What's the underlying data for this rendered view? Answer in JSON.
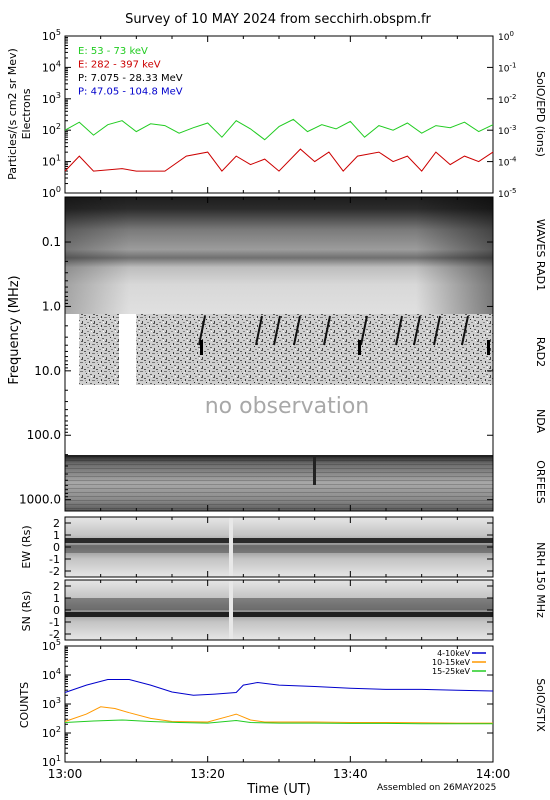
{
  "title": "Survey of 10 MAY 2024 from secchirh.obspm.fr",
  "footer": "Assembled on 26MAY2025",
  "chart_data": [
    {
      "type": "line",
      "panel": "SolO/EPD",
      "left_ylabel": [
        "Particles/(s cm2 sr Mev)",
        "Electrons"
      ],
      "right_ylabel": "SolO/EPD (ions)",
      "yscale": "log",
      "left_ylim": [
        1,
        100000
      ],
      "left_ticks": [
        {
          "base": "10",
          "exp": "0"
        },
        {
          "base": "10",
          "exp": "1"
        },
        {
          "base": "10",
          "exp": "2"
        },
        {
          "base": "10",
          "exp": "3"
        },
        {
          "base": "10",
          "exp": "4"
        },
        {
          "base": "10",
          "exp": "5"
        }
      ],
      "right_ylim": [
        1e-05,
        1
      ],
      "right_ticks": [
        {
          "base": "10",
          "exp": "-5"
        },
        {
          "base": "10",
          "exp": "-4"
        },
        {
          "base": "10",
          "exp": "-3"
        },
        {
          "base": "10",
          "exp": "-2"
        },
        {
          "base": "10",
          "exp": "-1"
        },
        {
          "base": "10",
          "exp": "0"
        }
      ],
      "legend_position": "top-left",
      "series": [
        {
          "name": "E: 53 - 73 keV",
          "color": "#22cc22",
          "axis": "left",
          "x": [
            "13:00",
            "13:02",
            "13:04",
            "13:06",
            "13:08",
            "13:10",
            "13:12",
            "13:14",
            "13:16",
            "13:18",
            "13:20",
            "13:22",
            "13:24",
            "13:26",
            "13:28",
            "13:30",
            "13:32",
            "13:34",
            "13:36",
            "13:38",
            "13:40",
            "13:42",
            "13:44",
            "13:46",
            "13:48",
            "13:50",
            "13:52",
            "13:54",
            "13:56",
            "13:58",
            "14:00"
          ],
          "y": [
            100,
            180,
            70,
            150,
            200,
            90,
            160,
            140,
            80,
            120,
            170,
            60,
            200,
            110,
            50,
            130,
            220,
            90,
            150,
            110,
            190,
            60,
            140,
            100,
            170,
            80,
            140,
            120,
            180,
            90,
            150
          ]
        },
        {
          "name": "E: 282 - 397 keV",
          "color": "#cc0000",
          "axis": "left",
          "x": [
            "13:00",
            "13:02",
            "13:04",
            "13:08",
            "13:10",
            "13:14",
            "13:17",
            "13:20",
            "13:22",
            "13:24",
            "13:26",
            "13:28",
            "13:30",
            "13:33",
            "13:35",
            "13:37",
            "13:39",
            "13:41",
            "13:44",
            "13:46",
            "13:48",
            "13:50",
            "13:52",
            "13:54",
            "13:56",
            "13:58",
            "14:00"
          ],
          "y": [
            5,
            15,
            5,
            6,
            5,
            5,
            15,
            20,
            5,
            15,
            8,
            12,
            5,
            25,
            10,
            20,
            5,
            15,
            20,
            10,
            15,
            5,
            20,
            8,
            15,
            10,
            20
          ]
        },
        {
          "name": "P: 7.075 - 28.33 MeV",
          "color": "#000000",
          "axis": "right",
          "x": [],
          "y": []
        },
        {
          "name": "P: 47.05 - 104.8 MeV",
          "color": "#0000cc",
          "axis": "right",
          "x": [],
          "y": []
        }
      ]
    },
    {
      "type": "heatmap",
      "panel": "Radio dynamic spectrum",
      "ylabel": "Frequency (MHz)",
      "yscale": "log",
      "ylim": [
        0.02,
        1500
      ],
      "y_ticks": [
        "0.1",
        "1.0",
        "10.0",
        "100.0",
        "1000.0"
      ],
      "instruments": [
        "WAVES RAD1",
        "RAD2",
        "NDA",
        "ORFEES"
      ],
      "annotation": "no observation"
    },
    {
      "type": "heatmap",
      "panel": "NRH 150 MHz EW",
      "ylabel": "EW (Rs)",
      "ylim": [
        -2.5,
        2.5
      ],
      "y_ticks": [
        "-2",
        "-1",
        "0",
        "1",
        "2"
      ]
    },
    {
      "type": "heatmap",
      "panel": "NRH 150 MHz SN",
      "ylabel": "SN (Rs)",
      "ylim": [
        -2.5,
        2.5
      ],
      "y_ticks": [
        "-2",
        "-1",
        "0",
        "1",
        "2"
      ],
      "right_label": "NRH 150 MHz"
    },
    {
      "type": "line",
      "panel": "SolO/STIX",
      "ylabel": "COUNTS",
      "right_label": "SolO/STIX",
      "yscale": "log",
      "ylim": [
        10,
        100000
      ],
      "y_ticks": [
        {
          "base": "10",
          "exp": "1"
        },
        {
          "base": "10",
          "exp": "2"
        },
        {
          "base": "10",
          "exp": "3"
        },
        {
          "base": "10",
          "exp": "4"
        },
        {
          "base": "10",
          "exp": "5"
        }
      ],
      "legend_position": "top-right",
      "series": [
        {
          "name": "4-10keV",
          "color": "#0000cc",
          "x": [
            "13:00",
            "13:03",
            "13:06",
            "13:09",
            "13:12",
            "13:15",
            "13:18",
            "13:21",
            "13:24",
            "13:25",
            "13:27",
            "13:30",
            "13:35",
            "13:40",
            "13:45",
            "13:50",
            "13:55",
            "14:00"
          ],
          "y": [
            2500,
            4500,
            7000,
            7000,
            4500,
            2600,
            2000,
            2200,
            2500,
            4500,
            5500,
            4500,
            4000,
            3500,
            3200,
            3200,
            3000,
            2800
          ]
        },
        {
          "name": "10-15keV",
          "color": "#ff9900",
          "x": [
            "13:00",
            "13:03",
            "13:05",
            "13:07",
            "13:09",
            "13:12",
            "13:15",
            "13:20",
            "13:23",
            "13:24",
            "13:26",
            "13:28",
            "13:30",
            "13:35",
            "13:40",
            "13:45",
            "13:50",
            "13:55",
            "14:00"
          ],
          "y": [
            250,
            450,
            800,
            700,
            500,
            320,
            250,
            240,
            380,
            450,
            280,
            240,
            240,
            240,
            230,
            230,
            225,
            220,
            220
          ]
        },
        {
          "name": "15-25keV",
          "color": "#22cc22",
          "x": [
            "13:00",
            "13:04",
            "13:08",
            "13:12",
            "13:16",
            "13:20",
            "13:24",
            "13:26",
            "13:30",
            "13:35",
            "13:40",
            "13:45",
            "13:50",
            "13:55",
            "14:00"
          ],
          "y": [
            230,
            260,
            280,
            250,
            230,
            220,
            270,
            230,
            220,
            220,
            215,
            215,
            210,
            210,
            210
          ]
        }
      ]
    }
  ],
  "time_axis": {
    "label": "Time (UT)",
    "tick_labels": [
      "13:00",
      "13:20",
      "13:40",
      "14:00"
    ],
    "start": "13:00",
    "end": "14:00"
  },
  "right_labels": {
    "epd": "SolO/EPD (ions)",
    "waves": "WAVES RAD1",
    "rad2": "RAD2",
    "nda": "NDA",
    "orfees": "ORFEES",
    "nrh": "NRH 150 MHz",
    "stix": "SolO/STIX"
  }
}
